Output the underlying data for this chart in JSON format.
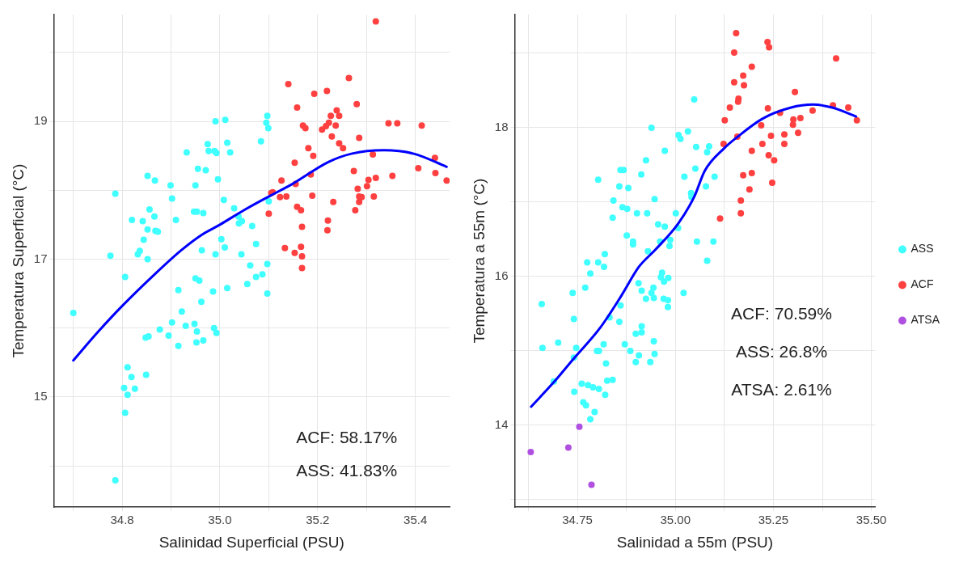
{
  "chart_data": [
    {
      "type": "scatter",
      "xlabel": "Salinidad Superficial (PSU)",
      "ylabel": "Temperatura Superficial (°C)",
      "xlim": [
        34.66,
        35.47
      ],
      "ylim": [
        13.4,
        20.55
      ],
      "xticks": [
        {
          "value": 34.7,
          "label": null
        },
        34.8,
        {
          "value": 34.9,
          "label": null
        },
        {
          "value": 35.0,
          "label": "35.0"
        },
        {
          "value": 35.1,
          "label": null
        },
        35.2,
        {
          "value": 35.3,
          "label": null
        },
        35.4
      ],
      "yticks": [
        {
          "value": 14,
          "label": null
        },
        15,
        {
          "value": 16,
          "label": null
        },
        17,
        {
          "value": 18,
          "label": null
        },
        19,
        {
          "value": 20,
          "label": null
        }
      ],
      "grid": true,
      "marker": "circle",
      "annotations": [
        "ACF: 58.17%",
        "ASS: 41.83%"
      ],
      "series": [
        {
          "color": "#40ffff",
          "x": [
            34.7,
            34.786,
            34.776,
            34.806,
            34.82,
            34.842,
            34.856,
            34.866,
            34.852,
            34.868,
            34.873,
            34.844,
            34.836,
            34.832,
            34.852,
            34.852,
            34.867,
            34.899,
            34.902,
            34.91,
            34.932,
            34.955,
            34.971,
            34.95,
            34.947,
            34.953,
            34.966,
            34.975,
            34.977,
            34.989,
            34.993,
            34.991,
            35.011,
            35.015,
            35.021,
            34.996,
            35.008,
            35.029,
            35.038,
            35.039,
            35.045,
            35.066,
            35.074,
            35.003,
            35.01,
            34.963,
            34.991,
            35.044,
            35.062,
            35.074,
            35.087,
            35.056,
            35.097,
            35.097,
            35.084,
            35.097,
            35.095,
            35.099,
            35.1,
            34.95,
            34.958,
            34.915,
            34.986,
            35.015,
            34.962,
            34.922,
            34.902,
            34.948,
            34.93,
            34.953,
            34.988,
            34.993,
            34.952,
            34.966,
            34.877,
            34.848,
            34.854,
            34.895,
            34.915,
            34.811,
            34.819,
            34.804,
            34.811,
            34.826,
            34.849,
            34.806,
            34.786
          ],
          "values": [
            16.22,
            17.95,
            17.05,
            16.74,
            17.57,
            17.55,
            17.72,
            17.62,
            17.43,
            17.41,
            17.4,
            17.28,
            17.12,
            17.07,
            17.0,
            18.21,
            18.14,
            18.07,
            17.88,
            17.57,
            18.55,
            18.31,
            18.29,
            18.07,
            17.69,
            17.69,
            17.67,
            18.67,
            18.57,
            18.57,
            18.54,
            19.0,
            19.02,
            18.69,
            18.55,
            18.16,
            17.86,
            17.74,
            17.62,
            17.52,
            17.55,
            17.48,
            17.22,
            17.29,
            17.17,
            17.13,
            17.07,
            17.07,
            16.91,
            16.74,
            16.78,
            16.64,
            16.93,
            16.5,
            18.71,
            19.08,
            18.98,
            18.9,
            17.84,
            16.72,
            16.69,
            16.55,
            16.53,
            16.58,
            16.38,
            16.24,
            16.08,
            16.06,
            16.03,
            15.95,
            16.0,
            15.93,
            15.79,
            15.82,
            15.98,
            15.86,
            15.88,
            15.89,
            15.74,
            15.43,
            15.29,
            15.13,
            15.03,
            15.12,
            15.32,
            14.77,
            13.79
          ]
        },
        {
          "color": "#ff4040",
          "x": [
            35.319,
            35.264,
            35.14,
            35.193,
            35.219,
            35.158,
            35.28,
            35.239,
            35.227,
            35.244,
            35.223,
            35.217,
            35.237,
            35.209,
            35.17,
            35.175,
            35.229,
            35.285,
            35.244,
            35.252,
            35.181,
            35.191,
            35.153,
            35.313,
            35.345,
            35.363,
            35.413,
            35.44,
            35.406,
            35.441,
            35.464,
            35.353,
            35.319,
            35.274,
            35.186,
            35.126,
            35.155,
            35.108,
            35.123,
            35.136,
            35.189,
            35.232,
            35.304,
            35.301,
            35.282,
            35.285,
            35.29,
            35.285,
            35.315,
            35.277,
            35.1,
            35.158,
            35.166,
            35.168,
            35.221,
            35.22,
            35.133,
            35.153,
            35.166,
            35.168,
            35.168,
            35.105
          ],
          "values": [
            20.45,
            19.63,
            19.54,
            19.4,
            19.44,
            19.2,
            19.25,
            19.16,
            19.08,
            19.08,
            18.98,
            18.93,
            18.94,
            18.88,
            18.94,
            18.9,
            18.78,
            18.76,
            18.68,
            18.61,
            18.61,
            18.5,
            18.4,
            18.52,
            18.97,
            18.97,
            18.94,
            18.47,
            18.32,
            18.25,
            18.14,
            18.21,
            18.18,
            18.28,
            18.23,
            18.14,
            18.09,
            17.97,
            17.9,
            17.91,
            17.92,
            17.83,
            18.15,
            18.06,
            18.02,
            17.91,
            17.9,
            17.83,
            17.91,
            17.71,
            17.66,
            17.76,
            17.71,
            17.47,
            17.56,
            17.42,
            17.16,
            17.09,
            17.18,
            17.04,
            16.87,
            17.96
          ]
        },
        {
          "type": "line",
          "marker": "none",
          "color": "#0000ff",
          "x": [
            34.7,
            34.75,
            34.8,
            34.868,
            34.921,
            34.962,
            35.0,
            35.049,
            35.103,
            35.148,
            35.222,
            35.269,
            35.336,
            35.397,
            35.464
          ],
          "values": [
            15.53,
            15.94,
            16.32,
            16.79,
            17.13,
            17.35,
            17.5,
            17.71,
            17.92,
            18.09,
            18.41,
            18.53,
            18.58,
            18.53,
            18.34
          ]
        }
      ]
    },
    {
      "type": "scatter",
      "xlabel": "Salinidad a 55m (PSU)",
      "ylabel": "Temperatura a 55m (°C)",
      "xlim": [
        34.59,
        35.51
      ],
      "ylim": [
        12.9,
        19.52
      ],
      "xticks": [
        {
          "value": 34.625,
          "label": null
        },
        {
          "value": 34.75,
          "label": "34.75"
        },
        {
          "value": 34.875,
          "label": null
        },
        {
          "value": 35.0,
          "label": "35.00"
        },
        {
          "value": 35.125,
          "label": null
        },
        35.25,
        {
          "value": 35.375,
          "label": null
        },
        {
          "value": 35.5,
          "label": "35.50"
        }
      ],
      "yticks": [
        {
          "value": 13,
          "label": null
        },
        14,
        {
          "value": 15,
          "label": null
        },
        16,
        {
          "value": 17,
          "label": null
        },
        18,
        {
          "value": 19,
          "label": null
        }
      ],
      "grid": true,
      "marker": "circle",
      "legend": "right",
      "annotations": [
        "ACF: 70.59%",
        "ASS: 26.8%",
        "ATSA: 2.61%"
      ],
      "series": [
        {
          "name": "ASS",
          "color": "#40ffff",
          "x": [
            34.659,
            34.661,
            34.701,
            34.69,
            34.738,
            34.741,
            34.747,
            34.741,
            34.742,
            34.761,
            34.777,
            34.79,
            34.765,
            34.772,
            34.794,
            34.783,
            34.805,
            34.821,
            34.826,
            34.84,
            34.823,
            34.817,
            34.8,
            34.805,
            34.832,
            34.86,
            34.857,
            34.77,
            34.783,
            34.775,
            34.803,
            34.818,
            34.82,
            34.803,
            34.842,
            34.84,
            34.857,
            34.86,
            34.868,
            34.865,
            34.877,
            34.88,
            34.876,
            34.892,
            34.892,
            34.902,
            34.913,
            34.925,
            34.928,
            34.947,
            34.939,
            34.973,
            34.93,
            34.956,
            34.973,
            34.961,
            34.987,
            34.985,
            34.966,
            34.963,
            34.971,
            34.982,
            34.906,
            34.914,
            34.925,
            34.939,
            34.945,
            34.944,
            34.97,
            34.981,
            34.981,
            35.021,
            34.899,
            34.914,
            34.914,
            34.945,
            34.947,
            34.936,
            34.899,
            34.907,
            34.885,
            34.871,
            35.001,
            35.007,
            35.008,
            35.013,
            35.032,
            35.023,
            35.04,
            35.048,
            35.053,
            35.086,
            35.081,
            35.051,
            35.1,
            35.078,
            35.041,
            35.055,
            35.097,
            35.081
          ],
          "values": [
            15.63,
            15.04,
            15.11,
            14.59,
            15.78,
            15.43,
            15.04,
            14.91,
            14.45,
            14.56,
            14.54,
            14.51,
            14.31,
            14.27,
            14.18,
            14.08,
            14.49,
            14.41,
            14.6,
            14.61,
            14.83,
            15.09,
            15.0,
            15.0,
            15.45,
            15.61,
            15.39,
            15.85,
            16.04,
            16.19,
            16.19,
            16.13,
            16.3,
            17.3,
            17.02,
            16.79,
            17.21,
            17.43,
            17.43,
            16.93,
            16.91,
            17.19,
            16.55,
            16.47,
            16.43,
            16.85,
            17.37,
            17.56,
            16.85,
            17.04,
            18.0,
            17.69,
            16.34,
            16.7,
            16.67,
            16.47,
            16.49,
            16.41,
            16.05,
            15.99,
            15.93,
            15.98,
            15.91,
            15.81,
            15.7,
            15.78,
            15.71,
            15.85,
            15.7,
            15.68,
            15.59,
            15.78,
            15.23,
            15.25,
            15.33,
            15.13,
            14.96,
            14.85,
            14.85,
            14.94,
            15.0,
            15.09,
            16.85,
            16.65,
            17.9,
            17.85,
            17.95,
            17.34,
            17.12,
            18.38,
            17.74,
            17.75,
            17.67,
            17.45,
            17.34,
            17.21,
            17.07,
            16.47,
            16.47,
            16.21
          ]
        },
        {
          "name": "ACF",
          "color": "#ff4040",
          "x": [
            35.155,
            35.15,
            35.235,
            35.239,
            35.41,
            35.195,
            35.173,
            35.175,
            35.15,
            35.161,
            35.16,
            35.305,
            35.139,
            35.236,
            35.126,
            35.267,
            35.35,
            35.402,
            35.441,
            35.463,
            35.301,
            35.319,
            35.3,
            35.219,
            35.158,
            35.123,
            35.244,
            35.278,
            35.313,
            35.222,
            35.278,
            35.195,
            35.238,
            35.252,
            35.173,
            35.195,
            35.189,
            35.247,
            35.167,
            35.167,
            35.114
          ],
          "values": [
            19.27,
            19.01,
            19.15,
            19.08,
            18.93,
            18.82,
            18.7,
            18.57,
            18.61,
            18.39,
            18.35,
            18.48,
            18.27,
            18.26,
            18.1,
            18.2,
            18.23,
            18.3,
            18.27,
            18.1,
            18.11,
            18.13,
            18.04,
            18.03,
            17.88,
            17.78,
            17.89,
            17.91,
            17.93,
            17.78,
            17.78,
            17.69,
            17.63,
            17.56,
            17.36,
            17.39,
            17.17,
            17.26,
            17.02,
            16.85,
            16.78
          ]
        },
        {
          "name": "ATSA",
          "color": "#b050e0",
          "x": [
            34.631,
            34.727,
            34.755,
            34.786
          ],
          "values": [
            13.64,
            13.7,
            13.98,
            13.2
          ]
        },
        {
          "type": "line",
          "marker": "none",
          "color": "#0000ff",
          "x": [
            34.632,
            34.69,
            34.738,
            34.808,
            34.862,
            34.907,
            34.949,
            35.007,
            35.048,
            35.075,
            35.124,
            35.157,
            35.222,
            35.295,
            35.351,
            35.4,
            35.461
          ],
          "values": [
            14.25,
            14.58,
            14.88,
            15.31,
            15.74,
            16.13,
            16.36,
            16.71,
            17.07,
            17.42,
            17.72,
            17.87,
            18.12,
            18.27,
            18.31,
            18.27,
            18.15
          ]
        }
      ]
    }
  ]
}
